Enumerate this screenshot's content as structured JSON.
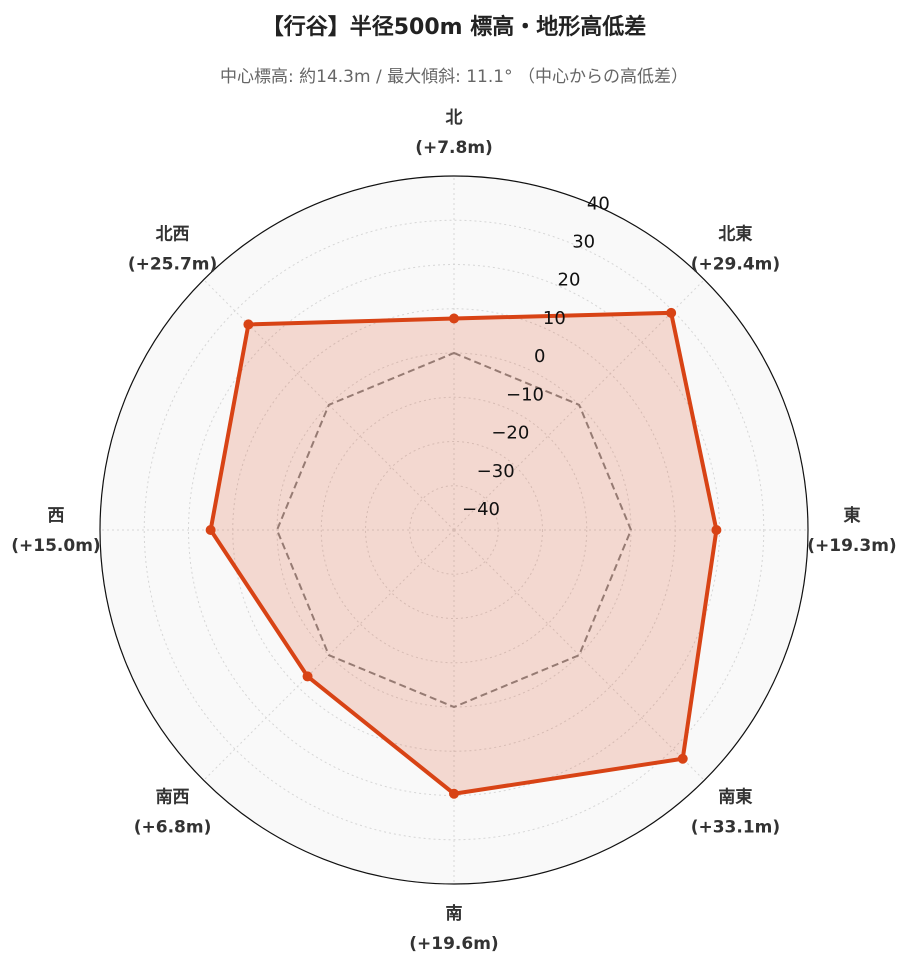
{
  "chart_data": {
    "type": "radar",
    "title": "【行谷】半径500m 標高・地形高低差",
    "subtitle": "中心標高: 約14.3m / 最大傾斜: 11.1° （中心からの高低差）",
    "categories": [
      "北",
      "北東",
      "東",
      "南東",
      "南",
      "南西",
      "西",
      "北西"
    ],
    "values": [
      7.8,
      29.4,
      19.3,
      33.1,
      19.6,
      6.8,
      15.0,
      25.7
    ],
    "value_labels": [
      "(+7.8m)",
      "(+29.4m)",
      "(+19.3m)",
      "(+33.1m)",
      "(+19.6m)",
      "(+6.8m)",
      "(+15.0m)",
      "(+25.7m)"
    ],
    "color": "#d84315",
    "ylim": [
      -40,
      40
    ],
    "yticks": [
      {
        "value": -40,
        "label": "−40"
      },
      {
        "value": -30,
        "label": "−30"
      },
      {
        "value": -20,
        "label": "−20"
      },
      {
        "value": -10,
        "label": "−10"
      },
      0,
      10,
      20,
      30,
      40
    ],
    "grid": true
  }
}
